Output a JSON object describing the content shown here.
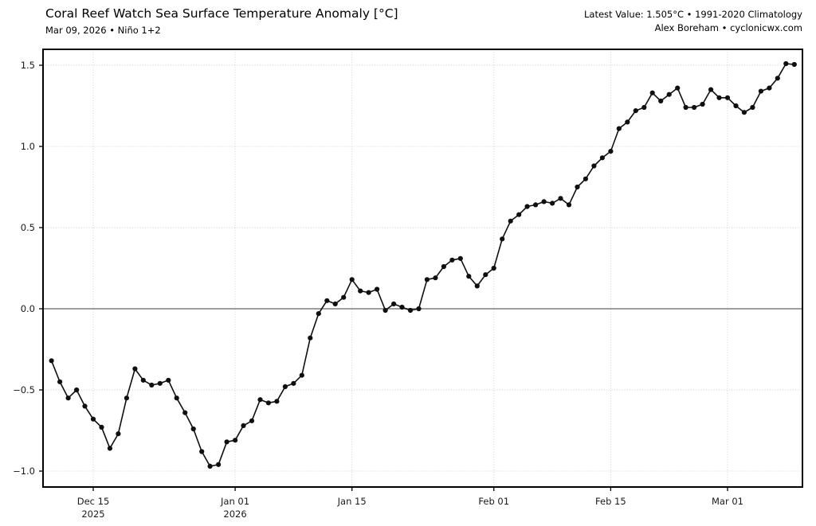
{
  "header": {
    "title": "Coral Reef Watch Sea Surface Temperature Anomaly [°C]",
    "subtitle": "Mar 09, 2026 • Niño 1+2",
    "latest_line": "Latest Value: 1.505°C • 1991-2020 Climatology",
    "credit_line": "Alex Boreham • cyclonicwx.com"
  },
  "chart_data": {
    "type": "line",
    "title": "Coral Reef Watch Sea Surface Temperature Anomaly [°C]",
    "series_name": "Niño 1+2 SST anomaly",
    "x_description": "daily values, Dec 10 2025 through Mar 09 2026 (index 0 = first plotted day)",
    "values": [
      -0.32,
      -0.45,
      -0.55,
      -0.5,
      -0.6,
      -0.68,
      -0.73,
      -0.86,
      -0.77,
      -0.55,
      -0.37,
      -0.44,
      -0.47,
      -0.46,
      -0.44,
      -0.55,
      -0.64,
      -0.74,
      -0.88,
      -0.97,
      -0.96,
      -0.82,
      -0.81,
      -0.72,
      -0.69,
      -0.56,
      -0.58,
      -0.57,
      -0.48,
      -0.46,
      -0.41,
      -0.18,
      -0.03,
      0.05,
      0.03,
      0.07,
      0.18,
      0.11,
      0.1,
      0.12,
      -0.01,
      0.03,
      0.01,
      -0.01,
      0.0,
      0.18,
      0.19,
      0.26,
      0.3,
      0.31,
      0.2,
      0.14,
      0.21,
      0.25,
      0.43,
      0.54,
      0.58,
      0.63,
      0.64,
      0.66,
      0.65,
      0.68,
      0.64,
      0.75,
      0.8,
      0.88,
      0.93,
      0.97,
      1.11,
      1.15,
      1.22,
      1.24,
      1.33,
      1.28,
      1.32,
      1.36,
      1.24,
      1.24,
      1.26,
      1.35,
      1.3,
      1.3,
      1.25,
      1.21,
      1.24,
      1.34,
      1.36,
      1.42,
      1.51,
      1.505
    ],
    "latest_value": 1.505,
    "ylim": [
      -1.1,
      1.6
    ],
    "yticks": [
      {
        "value": 1.5,
        "label": "1.5"
      },
      {
        "value": 1.0,
        "label": "1.0"
      },
      {
        "value": 0.5,
        "label": "0.5"
      },
      {
        "value": 0.0,
        "label": "0.0"
      },
      {
        "value": -0.5,
        "label": "−0.5"
      },
      {
        "value": -1.0,
        "label": "−1.0"
      }
    ],
    "xticks": [
      {
        "day_index": 5,
        "label": "Dec 15",
        "sublabel": "2025"
      },
      {
        "day_index": 22,
        "label": "Jan 01",
        "sublabel": "2026"
      },
      {
        "day_index": 36,
        "label": "Jan 15",
        "sublabel": ""
      },
      {
        "day_index": 53,
        "label": "Feb 01",
        "sublabel": ""
      },
      {
        "day_index": 67,
        "label": "Feb 15",
        "sublabel": ""
      },
      {
        "day_index": 81,
        "label": "Mar 01",
        "sublabel": ""
      }
    ],
    "grid": true,
    "legend": "none",
    "zero_line": true,
    "colors": {
      "line": "#0f0f0f",
      "marker": "#0f0f0f",
      "grid": "#cccccc",
      "zero_line": "#7f7f7f",
      "spine": "#000000",
      "tick_label": "#1a1a1a"
    }
  }
}
